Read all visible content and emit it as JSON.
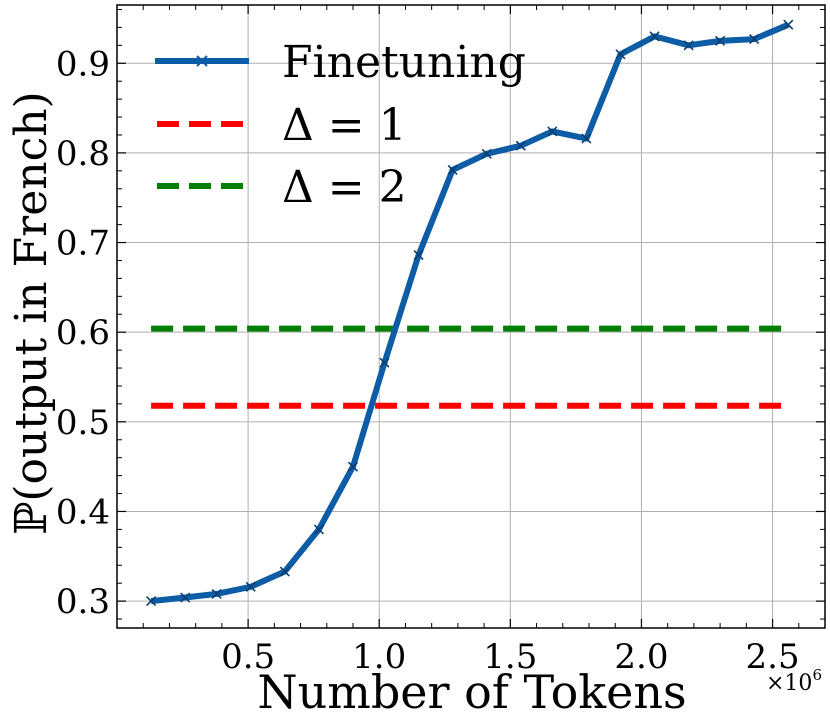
{
  "chart_data": {
    "type": "line",
    "xlabel": "Number of Tokens",
    "ylabel": "ℙ(output in French)",
    "x_exponent_label": "×10",
    "x_exponent_power": "6",
    "xlim": [
      0.0,
      2.7
    ],
    "ylim": [
      0.27,
      0.965
    ],
    "x_ticks": [
      0.5,
      1.0,
      1.5,
      2.0,
      2.5
    ],
    "x_tick_labels": [
      "0.5",
      "1.0",
      "1.5",
      "2.0",
      "2.5"
    ],
    "y_ticks": [
      0.3,
      0.4,
      0.5,
      0.6,
      0.7,
      0.8,
      0.9
    ],
    "y_tick_labels": [
      "0.3",
      "0.4",
      "0.5",
      "0.6",
      "0.7",
      "0.8",
      "0.9"
    ],
    "grid": true,
    "legend_position": "top-left",
    "series": [
      {
        "name": "Finetuning",
        "color": "#0c5da5",
        "style": "solid",
        "marker": "x",
        "x": [
          0.13,
          0.26,
          0.38,
          0.51,
          0.64,
          0.77,
          0.9,
          1.02,
          1.15,
          1.28,
          1.41,
          1.54,
          1.66,
          1.79,
          1.92,
          2.05,
          2.18,
          2.3,
          2.43,
          2.56
        ],
        "y": [
          0.3,
          0.304,
          0.308,
          0.316,
          0.333,
          0.38,
          0.45,
          0.566,
          0.686,
          0.781,
          0.799,
          0.808,
          0.824,
          0.816,
          0.91,
          0.93,
          0.92,
          0.925,
          0.927,
          0.943
        ]
      },
      {
        "name": "Δ = 1",
        "color": "#ff0000",
        "style": "dashed",
        "x": [
          0.13,
          2.56
        ],
        "y": [
          0.518,
          0.518
        ]
      },
      {
        "name": "Δ = 2",
        "color": "#008000",
        "style": "dashed",
        "x": [
          0.13,
          2.56
        ],
        "y": [
          0.604,
          0.604
        ]
      }
    ]
  }
}
